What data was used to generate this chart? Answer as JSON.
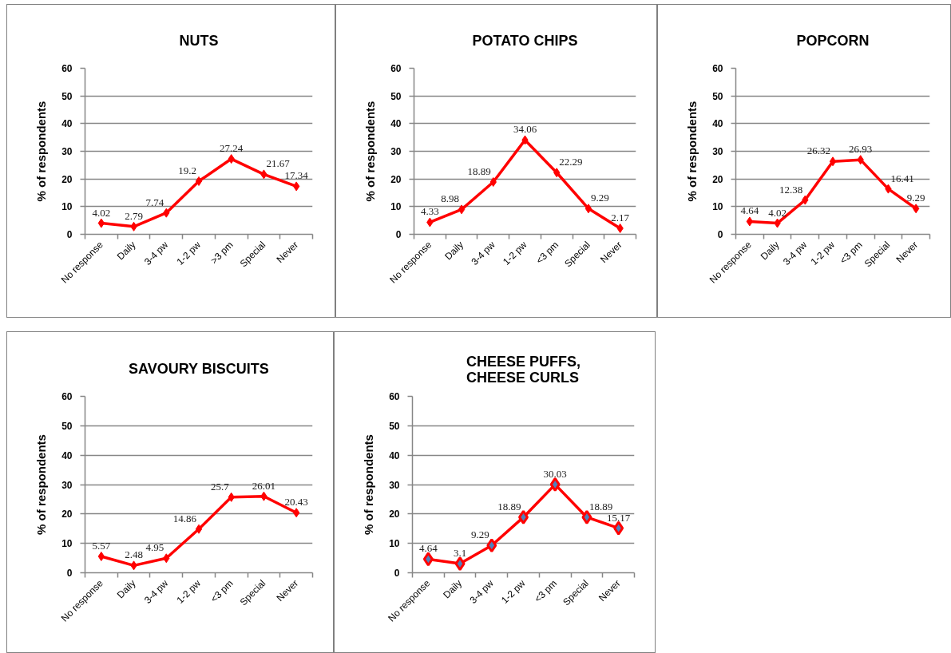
{
  "chart_data": [
    {
      "type": "line",
      "title": "NUTS",
      "ylabel": "% of respondents",
      "categories": [
        "No response",
        "Daily",
        "3-4 pw",
        "1-2 pw",
        ">3 pm",
        "Special",
        "Never"
      ],
      "series": [
        {
          "color": "#ff0000",
          "values": [
            4.02,
            2.79,
            7.74,
            19.2,
            27.24,
            21.67,
            17.34
          ]
        }
      ],
      "ylim": [
        0,
        60
      ],
      "yticks": [
        0,
        10,
        20,
        30,
        40,
        50,
        60
      ],
      "grid": "y",
      "marker": "diamond",
      "data_labels": true
    },
    {
      "type": "line",
      "title": "POTATO CHIPS",
      "ylabel": "% of respondents",
      "categories": [
        "No response",
        "Daily",
        "3-4 pw",
        "1-2 pw",
        "<3 pm",
        "Special",
        "Never"
      ],
      "series": [
        {
          "color": "#ff0000",
          "values": [
            4.33,
            8.98,
            18.89,
            34.06,
            22.29,
            9.29,
            2.17
          ]
        }
      ],
      "ylim": [
        0,
        60
      ],
      "yticks": [
        0,
        10,
        20,
        30,
        40,
        50,
        60
      ],
      "grid": "y",
      "marker": "diamond",
      "data_labels": true
    },
    {
      "type": "line",
      "title": "POPCORN",
      "ylabel": "% of respondents",
      "categories": [
        "No response",
        "Daily",
        "3-4 pw",
        "1-2 pw",
        "<3 pm",
        "Special",
        "Never"
      ],
      "series": [
        {
          "color": "#ff0000",
          "values": [
            4.64,
            4.02,
            12.38,
            26.32,
            26.93,
            16.41,
            9.29
          ]
        }
      ],
      "ylim": [
        0,
        60
      ],
      "yticks": [
        0,
        10,
        20,
        30,
        40,
        50,
        60
      ],
      "grid": "y",
      "marker": "diamond",
      "data_labels": true
    },
    {
      "type": "line",
      "title": "SAVOURY BISCUITS",
      "ylabel": "% of respondents",
      "categories": [
        "No response",
        "Daily",
        "3-4 pw",
        "1-2 pw",
        "<3 pm",
        "Special",
        "Never"
      ],
      "series": [
        {
          "color": "#ff0000",
          "values": [
            5.57,
            2.48,
            4.95,
            14.86,
            25.7,
            26.01,
            20.43
          ]
        }
      ],
      "ylim": [
        0,
        60
      ],
      "yticks": [
        0,
        10,
        20,
        30,
        40,
        50,
        60
      ],
      "grid": "y",
      "marker": "diamond",
      "data_labels": true
    },
    {
      "type": "line",
      "title": "CHEESE PUFFS,\nCHEESE CURLS",
      "ylabel": "% of respondents",
      "categories": [
        "No response",
        "Daily",
        "3-4 pw",
        "1-2 pw",
        "<3 pm",
        "Special",
        "Never"
      ],
      "series": [
        {
          "color": "#ff0000",
          "colors": [
            "#4f81bd",
            "#4f81bd",
            "#4f81bd",
            "#4f81bd",
            "#4f81bd",
            "#4f81bd",
            "#4f81bd"
          ],
          "values": [
            4.64,
            3.1,
            9.29,
            18.89,
            30.03,
            18.89,
            15.17
          ]
        }
      ],
      "ylim": [
        0,
        60
      ],
      "yticks": [
        0,
        10,
        20,
        30,
        40,
        50,
        60
      ],
      "grid": "y",
      "marker": "diamond",
      "data_labels": true
    }
  ]
}
